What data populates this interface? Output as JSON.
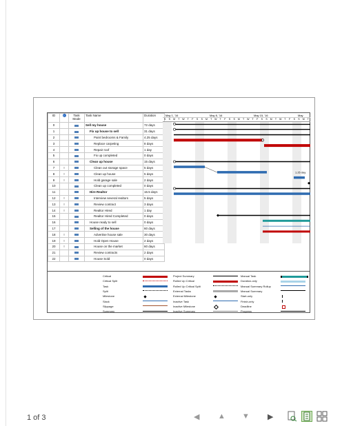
{
  "status": {
    "page_indicator": "1 of 3"
  },
  "toolbar": {
    "icons": [
      "arrow-left-icon",
      "arrow-up-icon",
      "arrow-down-icon",
      "arrow-right-icon",
      "zoom-page-icon",
      "one-page-icon",
      "multi-page-icon"
    ]
  },
  "table": {
    "headers": {
      "id": "ID",
      "info": "i",
      "mode": "Task Mode",
      "name": "Task Name",
      "duration": "Duration"
    },
    "rows": [
      {
        "id": "0",
        "ind": "",
        "name": "Sell my house",
        "duration": "72 days",
        "indent": 0,
        "bold": true
      },
      {
        "id": "1",
        "ind": "",
        "name": "Fix up house to sell",
        "duration": "31 days",
        "indent": 1,
        "bold": true
      },
      {
        "id": "2",
        "ind": "",
        "name": "Paint bedrooms & Family",
        "duration": "4.25 days",
        "indent": 2,
        "bold": false
      },
      {
        "id": "3",
        "ind": "",
        "name": "Replace carpeting",
        "duration": "8 days",
        "indent": 2,
        "bold": false
      },
      {
        "id": "4",
        "ind": "",
        "name": "Repair roof",
        "duration": "1 day",
        "indent": 2,
        "bold": false
      },
      {
        "id": "5",
        "ind": "",
        "name": "Fix up completed",
        "duration": "0 days",
        "indent": 2,
        "bold": false
      },
      {
        "id": "6",
        "ind": "",
        "name": "Clean up house",
        "duration": "15 days",
        "indent": 1,
        "bold": true
      },
      {
        "id": "7",
        "ind": "!",
        "name": "Clean out storage space",
        "duration": "5 days",
        "indent": 2,
        "bold": false
      },
      {
        "id": "8",
        "ind": "!",
        "name": "Clean up house",
        "duration": "5 days",
        "indent": 2,
        "bold": false
      },
      {
        "id": "9",
        "ind": "!",
        "name": "Hold garage sale",
        "duration": "2 days",
        "indent": 2,
        "bold": false
      },
      {
        "id": "10",
        "ind": "",
        "name": "Clean up completed",
        "duration": "0 days",
        "indent": 2,
        "bold": false
      },
      {
        "id": "11",
        "ind": "",
        "name": "Hire Realtor",
        "duration": "16.5 days",
        "indent": 1,
        "bold": true
      },
      {
        "id": "12",
        "ind": "!",
        "name": "Interview several realtors",
        "duration": "5 days",
        "indent": 2,
        "bold": false
      },
      {
        "id": "13",
        "ind": "!",
        "name": "Review contract",
        "duration": "3 days",
        "indent": 2,
        "bold": false
      },
      {
        "id": "14",
        "ind": "!",
        "name": "Realtor Hired",
        "duration": "1 day",
        "indent": 2,
        "bold": false
      },
      {
        "id": "15",
        "ind": "",
        "name": "Realtor Hired Completed",
        "duration": "0 days",
        "indent": 2,
        "bold": false
      },
      {
        "id": "16",
        "ind": "",
        "name": "House ready to sell",
        "duration": "0 days",
        "indent": 1,
        "bold": false
      },
      {
        "id": "17",
        "ind": "",
        "name": "Selling of the house",
        "duration": "60 days",
        "indent": 1,
        "bold": true
      },
      {
        "id": "18",
        "ind": "!",
        "name": "Advertise house sale",
        "duration": "30 days",
        "indent": 2,
        "bold": false
      },
      {
        "id": "19",
        "ind": "!",
        "name": "Hold Open House",
        "duration": "2 days",
        "indent": 2,
        "bold": false
      },
      {
        "id": "20",
        "ind": "!",
        "name": "House on the market",
        "duration": "60 days",
        "indent": 2,
        "bold": false
      },
      {
        "id": "21",
        "ind": "",
        "name": "Review contracts",
        "duration": "2 days",
        "indent": 2,
        "bold": false
      },
      {
        "id": "22",
        "ind": "",
        "name": "House Sold",
        "duration": "0 days",
        "indent": 2,
        "bold": false
      }
    ]
  },
  "timeline": {
    "weeks": [
      "May 1, '16",
      "May 8, '16",
      "May 15, '16",
      "May"
    ],
    "days": [
      "S",
      "S",
      "M",
      "T",
      "W",
      "T",
      "F",
      "S",
      "S",
      "M",
      "T",
      "W",
      "T",
      "F",
      "S",
      "S",
      "M",
      "T",
      "W",
      "T",
      "F",
      "S",
      "S",
      "M",
      "T",
      "W",
      "T",
      "F",
      "S",
      "S",
      "M",
      "T"
    ],
    "annotation": "1.25 day"
  },
  "legend": {
    "col1": [
      "Critical",
      "Critical Split",
      "Task",
      "Split",
      "Milestone",
      "Slack",
      "Slippage",
      "Summary"
    ],
    "col2": [
      "Project Summary",
      "Rolled Up Critical",
      "Rolled Up Critical Split",
      "External Tasks",
      "External Milestone",
      "Inactive Task",
      "Inactive Milestone",
      "Inactive Summary"
    ],
    "col3": [
      "Manual Task",
      "Duration-only",
      "Manual Summary Rollup",
      "Manual Summary",
      "Start-only",
      "Finish-only",
      "Deadline",
      "Progress"
    ]
  },
  "colors": {
    "critical": "#c00000",
    "task": "#2e6bb0",
    "summary": "#000000",
    "manual": "#1f9a99"
  }
}
